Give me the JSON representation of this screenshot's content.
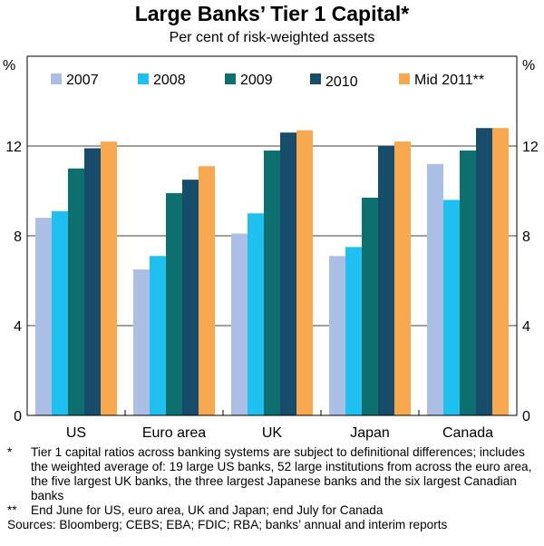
{
  "chart_data": {
    "type": "bar",
    "title": "Large Banks’ Tier 1 Capital*",
    "subtitle": "Per cent of risk-weighted assets",
    "ylabel_left": "%",
    "ylabel_right": "%",
    "ylim": [
      0,
      16
    ],
    "yticks": [
      0,
      4,
      8,
      12
    ],
    "categories": [
      "US",
      "Euro area",
      "UK",
      "Japan",
      "Canada"
    ],
    "series": [
      {
        "name": "2007",
        "color": "#aabfe3",
        "values": [
          8.8,
          6.5,
          8.1,
          7.1,
          11.2
        ]
      },
      {
        "name": "2008",
        "color": "#1fbff0",
        "values": [
          9.1,
          7.1,
          9.0,
          7.5,
          9.6
        ]
      },
      {
        "name": "2009",
        "color": "#0e706e",
        "values": [
          11.0,
          9.9,
          11.8,
          9.7,
          11.8
        ]
      },
      {
        "name": "2010",
        "color": "#174c6b",
        "values": [
          11.9,
          10.5,
          12.6,
          12.0,
          12.8
        ]
      },
      {
        "name": "Mid 2011**",
        "color": "#f8a84f",
        "values": [
          12.2,
          11.1,
          12.7,
          12.2,
          12.8
        ]
      }
    ]
  },
  "footnotes": [
    {
      "mark": "*",
      "text": "Tier 1 capital ratios across banking systems are subject to definitional differences; includes the weighted average of: 19 large US banks, 52 large institutions from across the euro area, the five largest UK banks, the three largest Japanese banks and the six largest Canadian banks"
    },
    {
      "mark": "**",
      "text": "End June for US, euro area, UK and Japan; end July for Canada"
    }
  ],
  "sources": "Sources: Bloomberg; CEBS; EBA; FDIC; RBA; banks’ annual and interim reports"
}
